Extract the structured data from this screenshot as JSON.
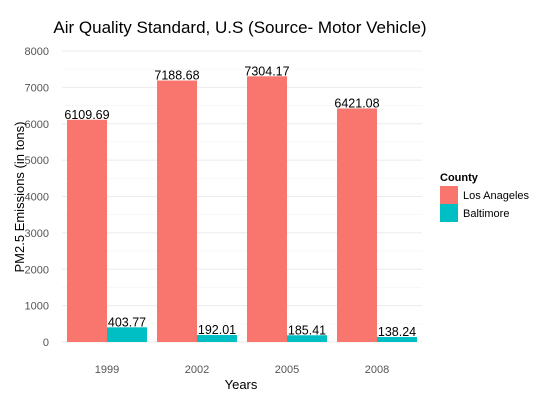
{
  "chart_data": {
    "type": "bar",
    "title": "Air Quality Standard, U.S (Source- Motor Vehicle)",
    "xlabel": "Years",
    "ylabel": "PM2.5 Emissions (in tons)",
    "categories": [
      "1999",
      "2002",
      "2005",
      "2008"
    ],
    "series": [
      {
        "name": "Los Anageles",
        "values": [
          6109.69,
          7188.68,
          7304.17,
          6421.08
        ],
        "labels": [
          "6109.69",
          "7188.68",
          "7304.17",
          "6421.08"
        ],
        "color": "#F8766D"
      },
      {
        "name": "Baltimore",
        "values": [
          403.77,
          192.01,
          185.41,
          138.24
        ],
        "labels": [
          "403.77",
          "192.01",
          "185.41",
          "138.24"
        ],
        "color": "#00BFC4"
      }
    ],
    "ylim": [
      0,
      8000
    ],
    "yticks": [
      0,
      1000,
      2000,
      3000,
      4000,
      5000,
      6000,
      7000,
      8000
    ],
    "grid": "horizontal",
    "legend": {
      "title": "County",
      "position": "right"
    }
  }
}
